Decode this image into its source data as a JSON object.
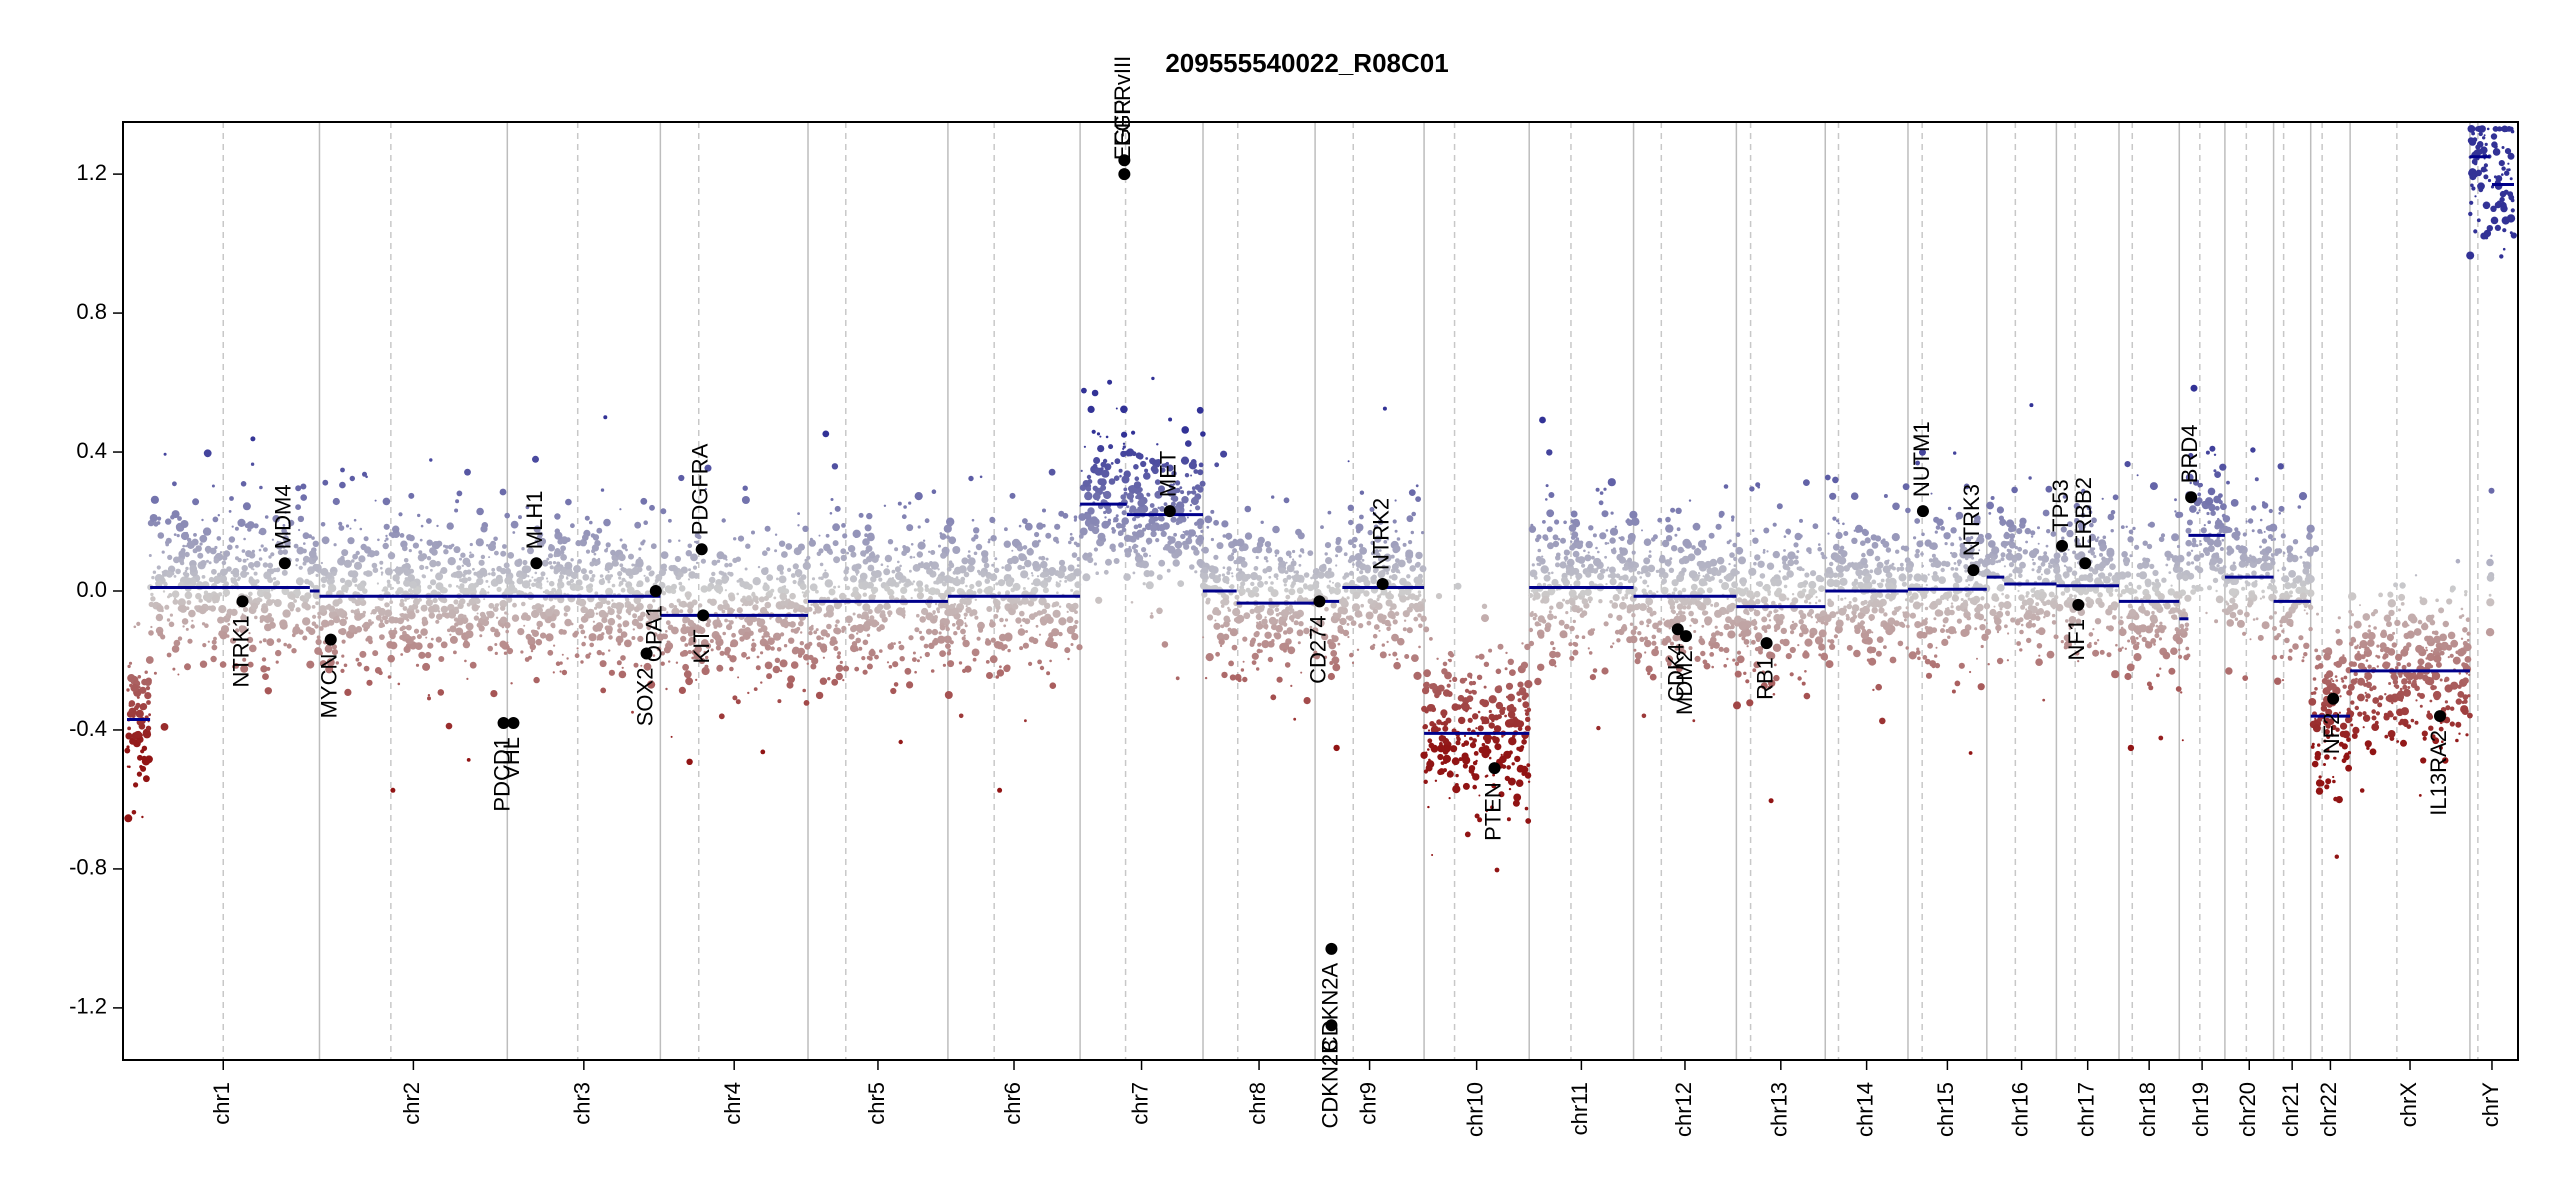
{
  "chart_data": {
    "type": "scatter",
    "title": "209555540022_R08C01",
    "xlabel": "",
    "ylabel": "",
    "ylim": [
      -1.35,
      1.35
    ],
    "yticks": [
      -1.2,
      -0.8,
      -0.4,
      0.0,
      0.4,
      0.8,
      1.2
    ],
    "ytick_labels": [
      "-1.2",
      "-0.8",
      "-0.4",
      "0.0",
      "0.4",
      "0.8",
      "1.2"
    ],
    "chromosomes": [
      {
        "name": "chr1",
        "length": 249,
        "centromere": 0.5,
        "segments": [
          {
            "from": 0,
            "to": 0.12,
            "value": -0.37
          },
          {
            "from": 0.12,
            "to": 0.95,
            "value": 0.01
          },
          {
            "from": 0.95,
            "to": 1,
            "value": 0.0
          }
        ]
      },
      {
        "name": "chr2",
        "length": 243,
        "centromere": 0.38,
        "segments": [
          {
            "from": 0,
            "to": 1,
            "value": -0.015
          }
        ]
      },
      {
        "name": "chr3",
        "length": 198,
        "centromere": 0.46,
        "segments": [
          {
            "from": 0,
            "to": 1,
            "value": -0.015
          }
        ]
      },
      {
        "name": "chr4",
        "length": 191,
        "centromere": 0.26,
        "segments": [
          {
            "from": 0,
            "to": 1,
            "value": -0.07
          }
        ]
      },
      {
        "name": "chr5",
        "length": 181,
        "centromere": 0.27,
        "segments": [
          {
            "from": 0,
            "to": 0.85,
            "value": -0.03
          },
          {
            "from": 0.85,
            "to": 1,
            "value": -0.03
          }
        ]
      },
      {
        "name": "chr6",
        "length": 171,
        "centromere": 0.35,
        "segments": [
          {
            "from": 0,
            "to": 1,
            "value": -0.015
          }
        ]
      },
      {
        "name": "chr7",
        "length": 159,
        "centromere": 0.37,
        "segments": [
          {
            "from": 0,
            "to": 0.38,
            "value": 0.25
          },
          {
            "from": 0.38,
            "to": 1,
            "value": 0.22
          }
        ]
      },
      {
        "name": "chr8",
        "length": 145,
        "centromere": 0.31,
        "segments": [
          {
            "from": 0,
            "to": 0.3,
            "value": 0.0
          },
          {
            "from": 0.3,
            "to": 1,
            "value": -0.035
          }
        ]
      },
      {
        "name": "chr9",
        "length": 141,
        "centromere": 0.35,
        "segments": [
          {
            "from": 0,
            "to": 0.22,
            "value": -0.03
          },
          {
            "from": 0.25,
            "to": 1,
            "value": 0.01
          }
        ]
      },
      {
        "name": "chr10",
        "length": 136,
        "centromere": 0.29,
        "segments": [
          {
            "from": 0,
            "to": 1,
            "value": -0.41
          }
        ]
      },
      {
        "name": "chr11",
        "length": 135,
        "centromere": 0.4,
        "segments": [
          {
            "from": 0,
            "to": 1,
            "value": 0.01
          }
        ]
      },
      {
        "name": "chr12",
        "length": 133,
        "centromere": 0.27,
        "segments": [
          {
            "from": 0,
            "to": 1,
            "value": -0.015
          }
        ]
      },
      {
        "name": "chr13",
        "length": 115,
        "centromere": 0.16,
        "segments": [
          {
            "from": 0,
            "to": 1,
            "value": -0.045
          }
        ]
      },
      {
        "name": "chr14",
        "length": 107,
        "centromere": 0.16,
        "segments": [
          {
            "from": 0,
            "to": 1,
            "value": 0.0
          }
        ]
      },
      {
        "name": "chr15",
        "length": 102,
        "centromere": 0.18,
        "segments": [
          {
            "from": 0,
            "to": 1,
            "value": 0.005
          }
        ]
      },
      {
        "name": "chr16",
        "length": 90,
        "centromere": 0.41,
        "segments": [
          {
            "from": 0,
            "to": 0.25,
            "value": 0.04
          },
          {
            "from": 0.25,
            "to": 1,
            "value": 0.02
          }
        ]
      },
      {
        "name": "chr17",
        "length": 81,
        "centromere": 0.3,
        "segments": [
          {
            "from": 0,
            "to": 1,
            "value": 0.015
          }
        ]
      },
      {
        "name": "chr18",
        "length": 78,
        "centromere": 0.22,
        "segments": [
          {
            "from": 0,
            "to": 1,
            "value": -0.03
          }
        ]
      },
      {
        "name": "chr19",
        "length": 59,
        "centromere": 0.45,
        "segments": [
          {
            "from": 0,
            "to": 0.2,
            "value": -0.08
          },
          {
            "from": 0.2,
            "to": 1,
            "value": 0.16
          }
        ]
      },
      {
        "name": "chr20",
        "length": 63,
        "centromere": 0.44,
        "segments": [
          {
            "from": 0,
            "to": 1,
            "value": 0.04
          }
        ]
      },
      {
        "name": "chr21",
        "length": 48,
        "centromere": 0.27,
        "segments": [
          {
            "from": 0,
            "to": 1,
            "value": -0.03
          }
        ]
      },
      {
        "name": "chr22",
        "length": 51,
        "centromere": 0.29,
        "segments": [
          {
            "from": 0,
            "to": 1,
            "value": -0.36
          }
        ]
      },
      {
        "name": "chrX",
        "length": 155,
        "centromere": 0.39,
        "segments": [
          {
            "from": 0,
            "to": 1,
            "value": -0.23
          }
        ]
      },
      {
        "name": "chrY",
        "length": 57,
        "centromere": 0.18,
        "segments": [
          {
            "from": 0,
            "to": 0.45,
            "value": 1.25
          },
          {
            "from": 0.5,
            "to": 1,
            "value": 1.17
          }
        ]
      }
    ],
    "genes": [
      {
        "name": "NTRK1",
        "chr": "chr1",
        "pos": 0.6,
        "value": -0.03
      },
      {
        "name": "MDM4",
        "chr": "chr1",
        "pos": 0.82,
        "value": 0.08
      },
      {
        "name": "MYCN",
        "chr": "chr2",
        "pos": 0.06,
        "value": -0.14
      },
      {
        "name": "PDCD1",
        "chr": "chr2",
        "pos": 0.98,
        "value": -0.38
      },
      {
        "name": "VHL",
        "chr": "chr3",
        "pos": 0.04,
        "value": -0.38
      },
      {
        "name": "MLH1",
        "chr": "chr3",
        "pos": 0.19,
        "value": 0.08
      },
      {
        "name": "SOX2",
        "chr": "chr3",
        "pos": 0.91,
        "value": -0.18
      },
      {
        "name": "OPA1",
        "chr": "chr3",
        "pos": 0.97,
        "value": 0.0
      },
      {
        "name": "PDGFRA",
        "chr": "chr4",
        "pos": 0.28,
        "value": 0.12
      },
      {
        "name": "KIT",
        "chr": "chr4",
        "pos": 0.29,
        "value": -0.07
      },
      {
        "name": "EGFR",
        "chr": "chr7",
        "pos": 0.36,
        "value": 1.2
      },
      {
        "name": "EGFRvIII",
        "chr": "chr7",
        "pos": 0.36,
        "value": 1.24
      },
      {
        "name": "MET",
        "chr": "chr7",
        "pos": 0.73,
        "value": 0.23
      },
      {
        "name": "CDKN2A",
        "chr": "chr9",
        "pos": 0.15,
        "value": -1.03
      },
      {
        "name": "CDKN2B",
        "chr": "chr9",
        "pos": 0.15,
        "value": -1.25
      },
      {
        "name": "CD274",
        "chr": "chr9",
        "pos": 0.04,
        "value": -0.03
      },
      {
        "name": "NTRK2",
        "chr": "chr9",
        "pos": 0.62,
        "value": 0.02
      },
      {
        "name": "PTEN",
        "chr": "chr10",
        "pos": 0.67,
        "value": -0.51
      },
      {
        "name": "CDK4",
        "chr": "chr12",
        "pos": 0.43,
        "value": -0.11
      },
      {
        "name": "MDM2",
        "chr": "chr12",
        "pos": 0.51,
        "value": -0.13
      },
      {
        "name": "RB1",
        "chr": "chr13",
        "pos": 0.34,
        "value": -0.15
      },
      {
        "name": "NUTM1",
        "chr": "chr15",
        "pos": 0.19,
        "value": 0.23
      },
      {
        "name": "NTRK3",
        "chr": "chr15",
        "pos": 0.83,
        "value": 0.06
      },
      {
        "name": "TP53",
        "chr": "chr17",
        "pos": 0.09,
        "value": 0.13
      },
      {
        "name": "NF1",
        "chr": "chr17",
        "pos": 0.35,
        "value": -0.04
      },
      {
        "name": "ERBB2",
        "chr": "chr17",
        "pos": 0.46,
        "value": 0.08
      },
      {
        "name": "BRD4",
        "chr": "chr19",
        "pos": 0.26,
        "value": 0.27
      },
      {
        "name": "NF2",
        "chr": "chr22",
        "pos": 0.57,
        "value": -0.31
      },
      {
        "name": "IL13RA2",
        "chr": "chrX",
        "pos": 0.75,
        "value": -0.36
      }
    ]
  }
}
